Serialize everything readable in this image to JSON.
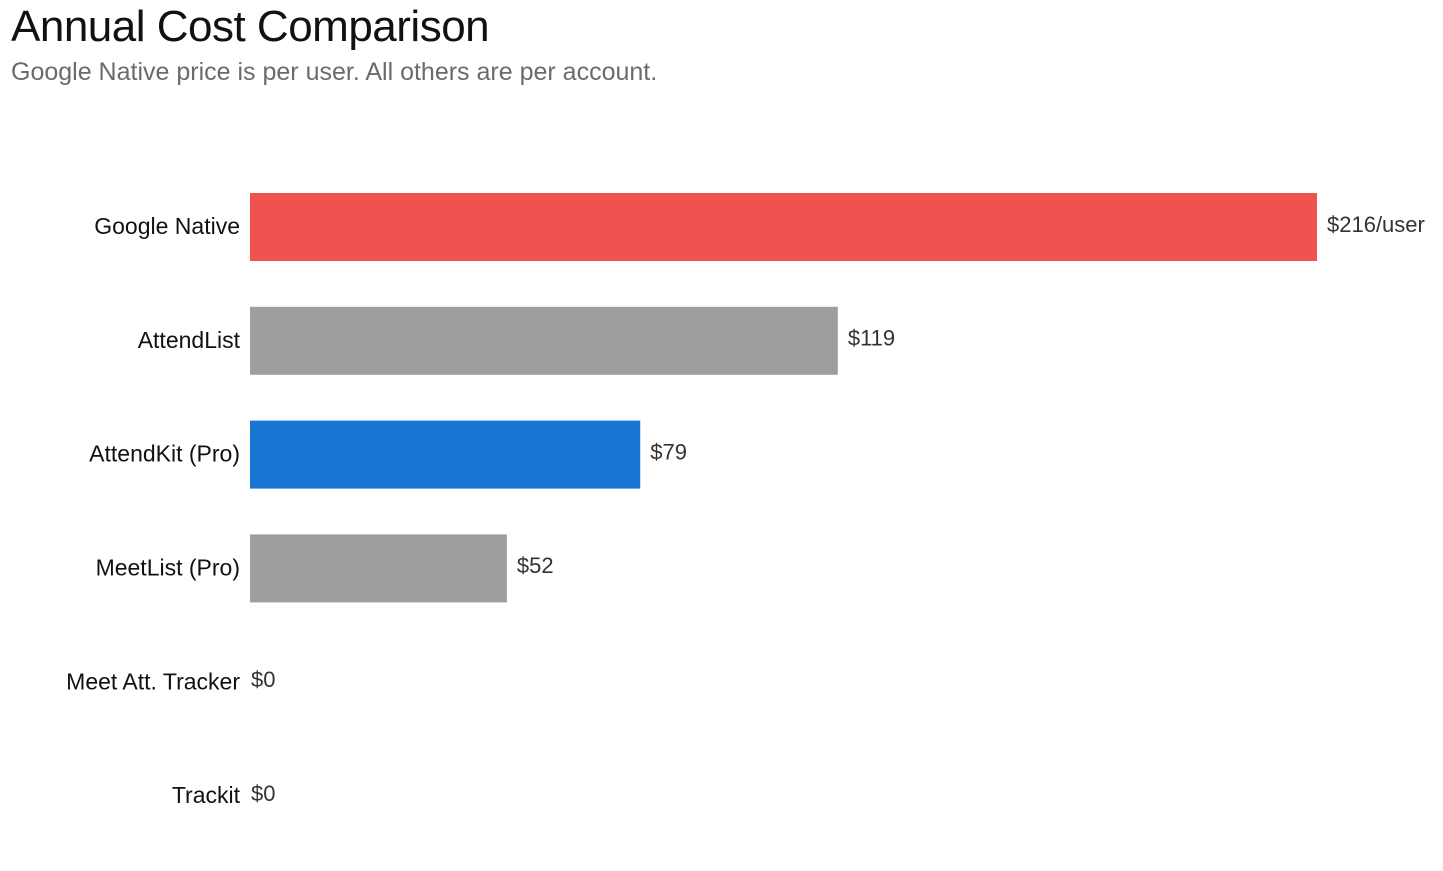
{
  "chart_data": {
    "type": "bar",
    "orientation": "horizontal",
    "title": "Annual Cost Comparison",
    "subtitle": "Google Native price is per user. All others are per account.",
    "categories": [
      "Google Native",
      "AttendList",
      "AttendKit (Pro)",
      "MeetList (Pro)",
      "Meet Att. Tracker",
      "Trackit"
    ],
    "values": [
      216,
      119,
      79,
      52,
      0,
      0
    ],
    "value_labels": [
      "$216/user",
      "$119",
      "$79",
      "$52",
      "$0",
      "$0"
    ],
    "colors": [
      "#ef5350",
      "#9e9e9e",
      "#1976d2",
      "#9e9e9e",
      "#9e9e9e",
      "#9e9e9e"
    ],
    "xlim": [
      0,
      216
    ],
    "grid": false,
    "legend": "none"
  }
}
